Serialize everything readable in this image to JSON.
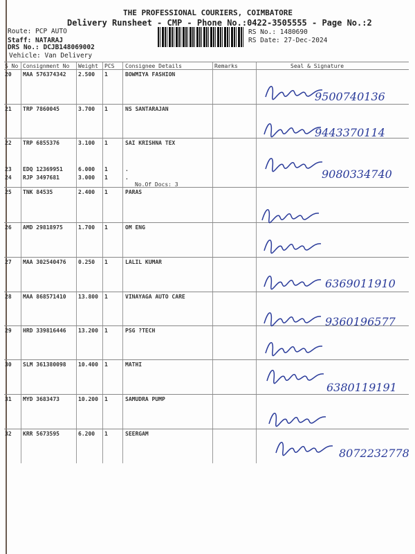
{
  "header": {
    "company": "THE PROFESSIONAL COURIERS, COIMBATORE",
    "subtitle": "Delivery Runsheet - CMP - Phone No.:0422-3505555 - Page No.:2",
    "route": "Route: PCP AUTO",
    "staff": "Staff: NATARAJ",
    "drs_no": "DRS No.: DCJB148069002",
    "vehicle": "Vehicle: Van Delivery",
    "rs_no": "RS No.: 1480690",
    "rs_date": "RS Date: 27-Dec-2024"
  },
  "columns": [
    "S No",
    "Consignment No",
    "Weight",
    "PCS",
    "Consignee Details",
    "Remarks",
    "Seal & Signature"
  ],
  "rows": [
    {
      "sno": "20",
      "consignment": "MAA 576374342",
      "weight": "2.500",
      "pcs": "1",
      "consignee": "BOWMIYA FASHION",
      "phone": "9500740136"
    },
    {
      "sno": "21",
      "consignment": "TRP 7860045",
      "weight": "3.700",
      "pcs": "1",
      "consignee": "NS SANTARAJAN",
      "phone": "9443370114"
    },
    {
      "sno": "22",
      "consignment": "TRP 6855376",
      "weight": "3.100",
      "pcs": "1",
      "consignee": "SAI KRISHNA TEX",
      "phone": "9080334740"
    },
    {
      "sno": "23",
      "consignment": "EDQ 12369951",
      "weight": "6.000",
      "pcs": "1",
      "consignee": ".",
      "phone": ""
    },
    {
      "sno": "24",
      "consignment": "RJP 3497681",
      "weight": "3.000",
      "pcs": "1",
      "consignee": ".",
      "note": "No.Of Docs: 3",
      "phone": ""
    },
    {
      "sno": "25",
      "consignment": "TNK 84535",
      "weight": "2.400",
      "pcs": "1",
      "consignee": "PARAS",
      "phone": ""
    },
    {
      "sno": "26",
      "consignment": "AMD 29818975",
      "weight": "1.700",
      "pcs": "1",
      "consignee": "OM ENG",
      "phone": ""
    },
    {
      "sno": "27",
      "consignment": "MAA 302540476",
      "weight": "0.250",
      "pcs": "1",
      "consignee": "LALIL KUMAR",
      "phone": "6369011910"
    },
    {
      "sno": "28",
      "consignment": "MAA 868571410",
      "weight": "13.800",
      "pcs": "1",
      "consignee": "VINAYAGA AUTO CARE",
      "phone": "9360196577"
    },
    {
      "sno": "29",
      "consignment": "HRD 339816446",
      "weight": "13.200",
      "pcs": "1",
      "consignee": "PSG ?TECH",
      "phone": ""
    },
    {
      "sno": "30",
      "consignment": "SLM 361380098",
      "weight": "10.400",
      "pcs": "1",
      "consignee": "MATHI",
      "phone": "6380119191"
    },
    {
      "sno": "31",
      "consignment": "MYD 3683473",
      "weight": "10.200",
      "pcs": "1",
      "consignee": "SAMUDRA PUMP",
      "phone": ""
    },
    {
      "sno": "32",
      "consignment": "KRR 5673595",
      "weight": "6.200",
      "pcs": "1",
      "consignee": "SEERGAM",
      "phone": "8072232778"
    }
  ],
  "colors": {
    "ink": "#2a3b9a",
    "text": "#222222"
  }
}
